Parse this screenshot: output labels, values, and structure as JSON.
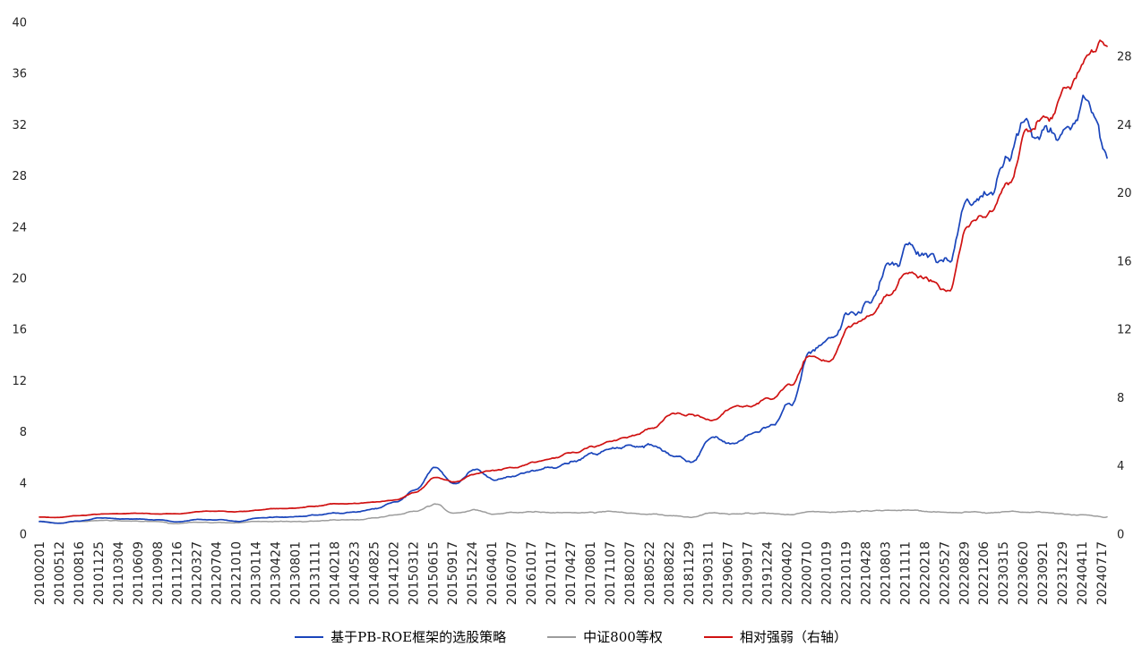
{
  "chart_data": {
    "type": "line",
    "grid": false,
    "legend_position": "bottom",
    "x_tick_labels": [
      "20100201",
      "20100512",
      "20100816",
      "20101125",
      "20110304",
      "20110609",
      "20110908",
      "20111216",
      "20120327",
      "20120704",
      "20121010",
      "20130114",
      "20130424",
      "20130801",
      "20131111",
      "20140218",
      "20140523",
      "20140825",
      "20141202",
      "20150312",
      "20150615",
      "20150917",
      "20151224",
      "20160401",
      "20160707",
      "20161017",
      "20170117",
      "20170427",
      "20170801",
      "20171107",
      "20180207",
      "20180522",
      "20180822",
      "20181129",
      "20190311",
      "20190617",
      "20190917",
      "20191224",
      "20200402",
      "20200710",
      "20201019",
      "20210119",
      "20210428",
      "20210803",
      "20211111",
      "20220218",
      "20220527",
      "20220829",
      "20221206",
      "20230315",
      "20230620",
      "20230921",
      "20231229",
      "20240411",
      "20240717"
    ],
    "left_axis": {
      "min": 0,
      "max": 40,
      "tick_step": 4,
      "ticks": [
        0,
        4,
        8,
        12,
        16,
        20,
        24,
        28,
        32,
        36,
        40
      ]
    },
    "right_axis": {
      "min": 0,
      "max": 30,
      "tick_step": 4,
      "ticks": [
        0,
        4,
        8,
        12,
        16,
        20,
        24,
        28
      ]
    },
    "series": [
      {
        "name": "基于PB-ROE框架的选股策略",
        "color": "#1a45bb",
        "axis": "left",
        "values": [
          1.0,
          0.85,
          1.0,
          1.25,
          1.2,
          1.2,
          1.1,
          0.95,
          1.15,
          1.1,
          1.0,
          1.25,
          1.3,
          1.35,
          1.5,
          1.7,
          1.75,
          2.1,
          2.6,
          3.6,
          5.3,
          3.9,
          5.0,
          4.3,
          4.7,
          5.1,
          5.2,
          5.6,
          6.2,
          6.7,
          7.0,
          7.1,
          6.3,
          5.7,
          7.7,
          7.2,
          7.9,
          8.6,
          10.2,
          14.3,
          15.3,
          17.2,
          18.3,
          21.5,
          22.6,
          21.8,
          20.8,
          25.8,
          26.3,
          28.8,
          32.4,
          31.8,
          30.6,
          33.8,
          29.4
        ]
      },
      {
        "name": "中证800等权",
        "color": "#9c9c9c",
        "axis": "left",
        "values": [
          1.0,
          0.9,
          1.0,
          1.1,
          1.1,
          1.05,
          1.0,
          0.85,
          0.95,
          0.9,
          0.85,
          1.0,
          1.0,
          1.0,
          1.05,
          1.1,
          1.1,
          1.25,
          1.45,
          1.75,
          2.4,
          1.6,
          1.9,
          1.55,
          1.65,
          1.7,
          1.65,
          1.65,
          1.7,
          1.7,
          1.65,
          1.6,
          1.45,
          1.3,
          1.65,
          1.55,
          1.6,
          1.65,
          1.55,
          1.75,
          1.75,
          1.8,
          1.8,
          1.85,
          1.9,
          1.75,
          1.7,
          1.8,
          1.7,
          1.8,
          1.75,
          1.65,
          1.55,
          1.5,
          1.35
        ]
      },
      {
        "name": "相对强弱（右轴）",
        "color": "#d01212",
        "axis": "right",
        "values": [
          1.0,
          1.0,
          1.1,
          1.2,
          1.2,
          1.25,
          1.2,
          1.2,
          1.3,
          1.35,
          1.3,
          1.4,
          1.5,
          1.55,
          1.65,
          1.75,
          1.8,
          1.9,
          2.0,
          2.4,
          3.3,
          3.1,
          3.5,
          3.7,
          3.9,
          4.2,
          4.4,
          4.8,
          5.1,
          5.5,
          5.8,
          6.3,
          7.2,
          7.0,
          6.6,
          7.4,
          7.5,
          7.9,
          8.8,
          10.4,
          10.2,
          11.9,
          12.8,
          14.0,
          15.5,
          14.8,
          14.3,
          18.2,
          18.8,
          20.8,
          24.0,
          24.3,
          25.8,
          27.8,
          28.6
        ]
      }
    ]
  }
}
